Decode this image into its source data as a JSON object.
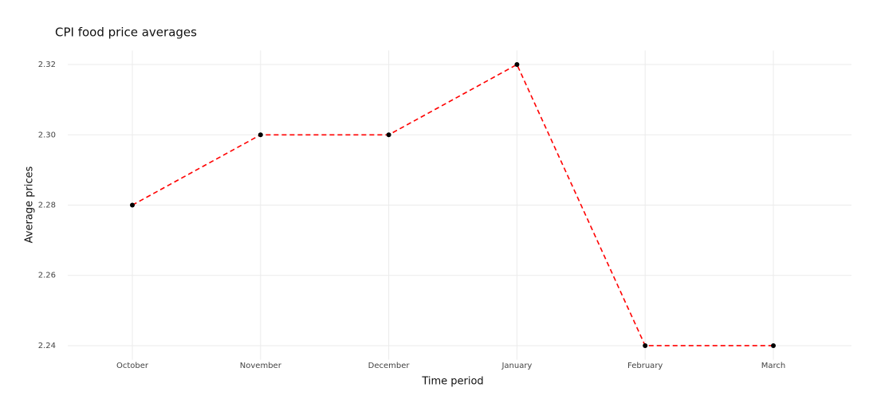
{
  "chart_data": {
    "type": "line",
    "title": "CPI food price averages",
    "x_label": "Time period",
    "y_label": "Average prices",
    "categories": [
      "October",
      "November",
      "December",
      "January",
      "February",
      "March"
    ],
    "series": [
      {
        "color": "#ff0000",
        "marker_color": "#000000",
        "line_style": "dashed",
        "values": [
          2.28,
          2.3,
          2.3,
          2.32,
          2.24,
          2.24
        ]
      }
    ],
    "ylim": [
      2.236,
      2.324
    ],
    "yticks": [
      2.24,
      2.26,
      2.28,
      {
        "value": 2.3,
        "label": "2.30"
      },
      2.32
    ],
    "grid": true
  }
}
